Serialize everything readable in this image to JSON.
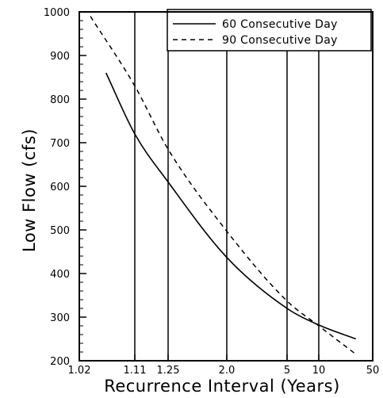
{
  "chart_data": {
    "type": "line",
    "title": "",
    "xlabel": "Recurrence  Interval  (Years)",
    "ylabel": "Low  Flow  (cfs)",
    "x_scale": "log-recurrence",
    "xlim": [
      1.02,
      50
    ],
    "ylim": [
      200,
      1000
    ],
    "x_ticks": [
      {
        "value": 1.02,
        "label": "1.02"
      },
      {
        "value": 1.11,
        "label": "1.11"
      },
      {
        "value": 1.25,
        "label": "1.25"
      },
      {
        "value": 2.0,
        "label": "2.0"
      },
      {
        "value": 5,
        "label": "5"
      },
      {
        "value": 10,
        "label": "10"
      },
      {
        "value": 50,
        "label": "50"
      }
    ],
    "y_ticks": [
      200,
      300,
      400,
      500,
      600,
      700,
      800,
      900,
      1000
    ],
    "vertical_gridlines_at": [
      1.11,
      1.25,
      2.0,
      5,
      10
    ],
    "legend_position": "top-right",
    "series": [
      {
        "name": "60  Consecutive  Day",
        "style": "solid",
        "points": [
          [
            1.05,
            860
          ],
          [
            1.11,
            720
          ],
          [
            1.25,
            610
          ],
          [
            2.0,
            437
          ],
          [
            5,
            320
          ],
          [
            10,
            282
          ],
          [
            30,
            250
          ]
        ]
      },
      {
        "name": "90  Consecutive  Day",
        "style": "dashed",
        "points": [
          [
            1.03,
            990
          ],
          [
            1.11,
            830
          ],
          [
            1.25,
            685
          ],
          [
            2.0,
            497
          ],
          [
            5,
            337
          ],
          [
            10,
            280
          ],
          [
            30,
            215
          ]
        ]
      }
    ]
  }
}
